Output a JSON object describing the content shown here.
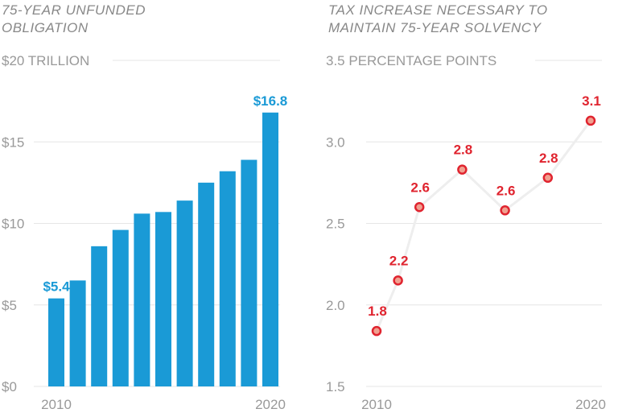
{
  "chart_data": [
    {
      "type": "bar",
      "title": "75-year unfunded obligation",
      "unit_label": "$20 TRILLION",
      "categories": [
        "2010",
        "2011",
        "2012",
        "2013",
        "2014",
        "2015",
        "2016",
        "2017",
        "2018",
        "2019",
        "2020"
      ],
      "values": [
        5.4,
        6.5,
        8.6,
        9.6,
        10.6,
        10.7,
        11.4,
        12.5,
        13.2,
        13.9,
        16.8
      ],
      "data_labels": [
        {
          "index": 0,
          "text": "$5.4"
        },
        {
          "index": 10,
          "text": "$16.8"
        }
      ],
      "yticks": [
        {
          "v": 0,
          "t": "$0"
        },
        {
          "v": 5,
          "t": "$5"
        },
        {
          "v": 10,
          "t": "$10"
        },
        {
          "v": 15,
          "t": "$15"
        }
      ],
      "xticks": [
        {
          "index": 0,
          "t": "2010"
        },
        {
          "index": 10,
          "t": "2020"
        }
      ],
      "ylim": [
        0,
        20
      ],
      "grid": true,
      "color": "#1a9ad6"
    },
    {
      "type": "line",
      "title": "Tax increase necessary to maintain 75-year solvency",
      "unit_label": "3.5 PERCENTAGE POINTS",
      "x": [
        2010,
        2011,
        2012,
        2014,
        2016,
        2018,
        2020
      ],
      "values": [
        1.84,
        2.15,
        2.6,
        2.83,
        2.58,
        2.78,
        3.13
      ],
      "data_labels": [
        "1.8",
        "2.2",
        "2.6",
        "2.8",
        "2.6",
        "2.8",
        "3.1"
      ],
      "yticks": [
        {
          "v": 1.5,
          "t": "1.5"
        },
        {
          "v": 2.0,
          "t": "2.0"
        },
        {
          "v": 2.5,
          "t": "2.5"
        },
        {
          "v": 3.0,
          "t": "3.0"
        }
      ],
      "xticks": [
        "2010",
        "2020"
      ],
      "ylim": [
        1.5,
        3.5
      ],
      "xlim": [
        2010,
        2020
      ],
      "grid": true,
      "marker_color": "#e0242f",
      "marker_fill": "#f0a090",
      "line_color": "#eeeeee"
    }
  ]
}
